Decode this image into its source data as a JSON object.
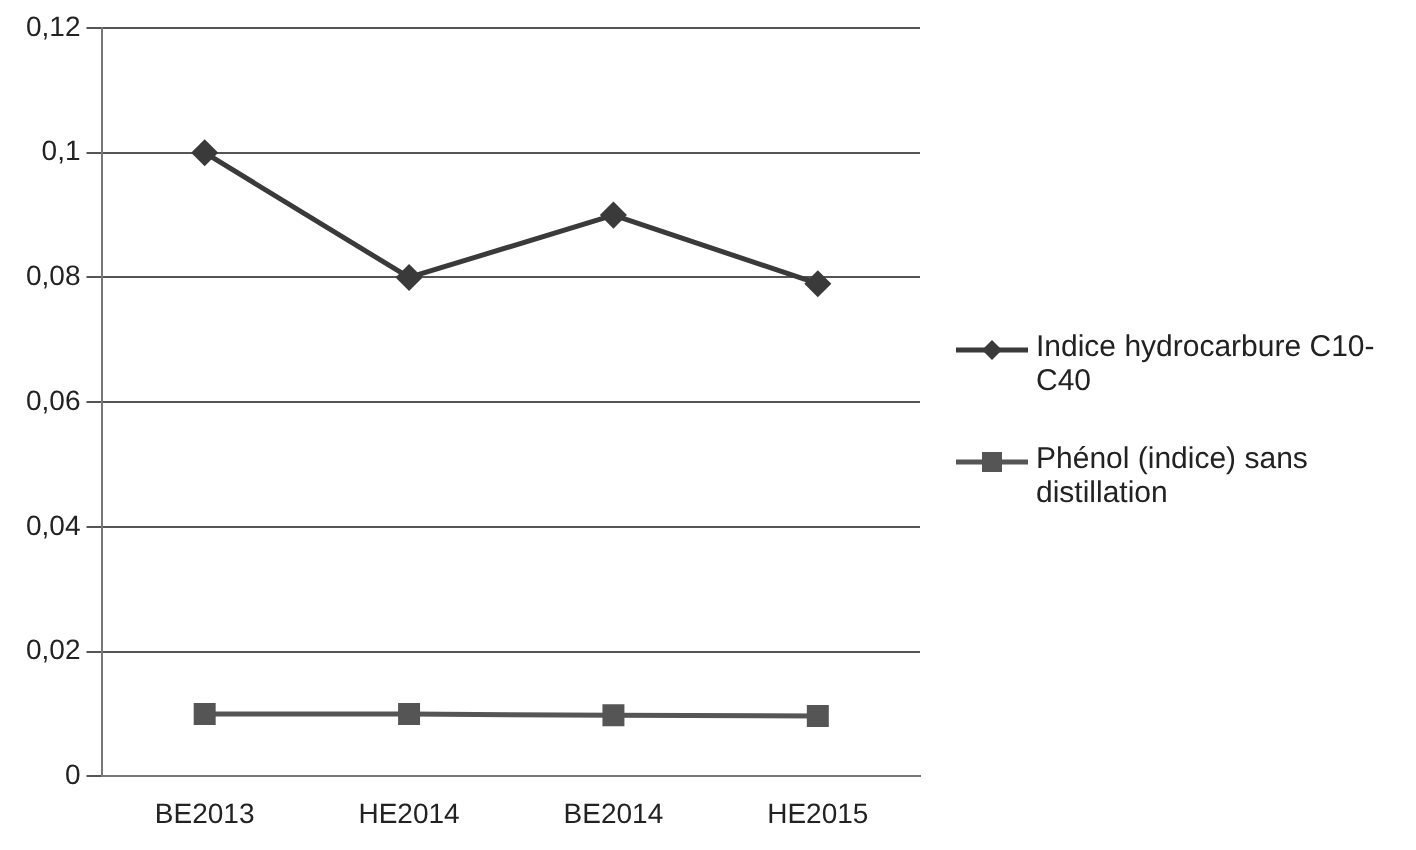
{
  "chart_data": {
    "type": "line",
    "categories": [
      "BE2013",
      "HE2014",
      "BE2014",
      "HE2015"
    ],
    "series": [
      {
        "name": "Indice hydrocarbure C10-C40",
        "color": "#3a3a3a",
        "marker": "diamond",
        "values": [
          0.1,
          0.08,
          0.09,
          0.079
        ]
      },
      {
        "name": "Phénol (indice) sans distillation",
        "color": "#555555",
        "marker": "square",
        "values": [
          0.01,
          0.01,
          0.0098,
          0.0097
        ]
      }
    ],
    "ylim": [
      0,
      0.12
    ],
    "yticks": [
      {
        "value": 0,
        "label": "0"
      },
      {
        "value": 0.02,
        "label": "0,02"
      },
      {
        "value": 0.04,
        "label": "0,04"
      },
      {
        "value": 0.06,
        "label": "0,06"
      },
      {
        "value": 0.08,
        "label": "0,08"
      },
      {
        "value": 0.1,
        "label": "0,1"
      },
      {
        "value": 0.12,
        "label": "0,12"
      }
    ],
    "grid": "y",
    "legend": "right"
  }
}
